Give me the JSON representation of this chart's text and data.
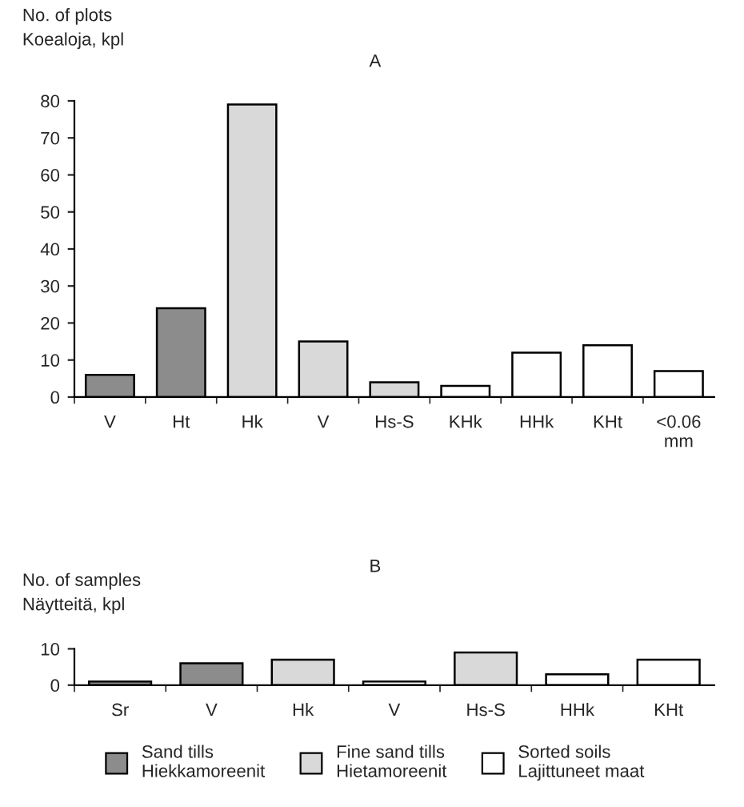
{
  "chart_data": [
    {
      "type": "bar",
      "title": "A",
      "ylabel": "No. of plots\nKoealoja, kpl",
      "categories": [
        "V",
        "Ht",
        "Hk",
        "V",
        "Hs-S",
        "KHk",
        "HHk",
        "KHt",
        "<0.06\nmm"
      ],
      "stacked": true,
      "series": [
        {
          "color": "#8c8c8c",
          "values": [
            6,
            24,
            null,
            null,
            null,
            null,
            null,
            null,
            null
          ]
        },
        {
          "color": "#d9d9d9",
          "values": [
            null,
            null,
            79,
            15,
            4,
            null,
            null,
            null,
            null
          ]
        },
        {
          "color": "#ffffff",
          "values": [
            null,
            null,
            null,
            null,
            null,
            3,
            12,
            14,
            7
          ]
        }
      ],
      "ylim": [
        0,
        80
      ],
      "yticks": [
        0,
        10,
        20,
        30,
        40,
        50,
        60,
        70,
        80
      ],
      "grid": false,
      "legend": false
    },
    {
      "type": "bar",
      "title": "B",
      "ylabel": "No. of samples\nNäytteitä, kpl",
      "categories": [
        "Sr",
        "V",
        "Hk",
        "V",
        "Hs-S",
        "HHk",
        "KHt"
      ],
      "stacked": true,
      "series": [
        {
          "name": "Sand tills\nHiekkamoreenit",
          "color": "#8c8c8c",
          "values": [
            1,
            6,
            null,
            null,
            null,
            null,
            null
          ]
        },
        {
          "name": "Fine sand tills\nHietamoreenit",
          "color": "#d9d9d9",
          "values": [
            null,
            null,
            7,
            null,
            9,
            null,
            null
          ]
        },
        {
          "name": "Sorted soils\nLajittuneet maat",
          "color": "#ffffff",
          "values": [
            null,
            null,
            null,
            1,
            null,
            3,
            7
          ]
        }
      ],
      "ylim": [
        0,
        10
      ],
      "yticks": [
        0,
        10
      ],
      "grid": false,
      "legend": "bottom"
    }
  ]
}
